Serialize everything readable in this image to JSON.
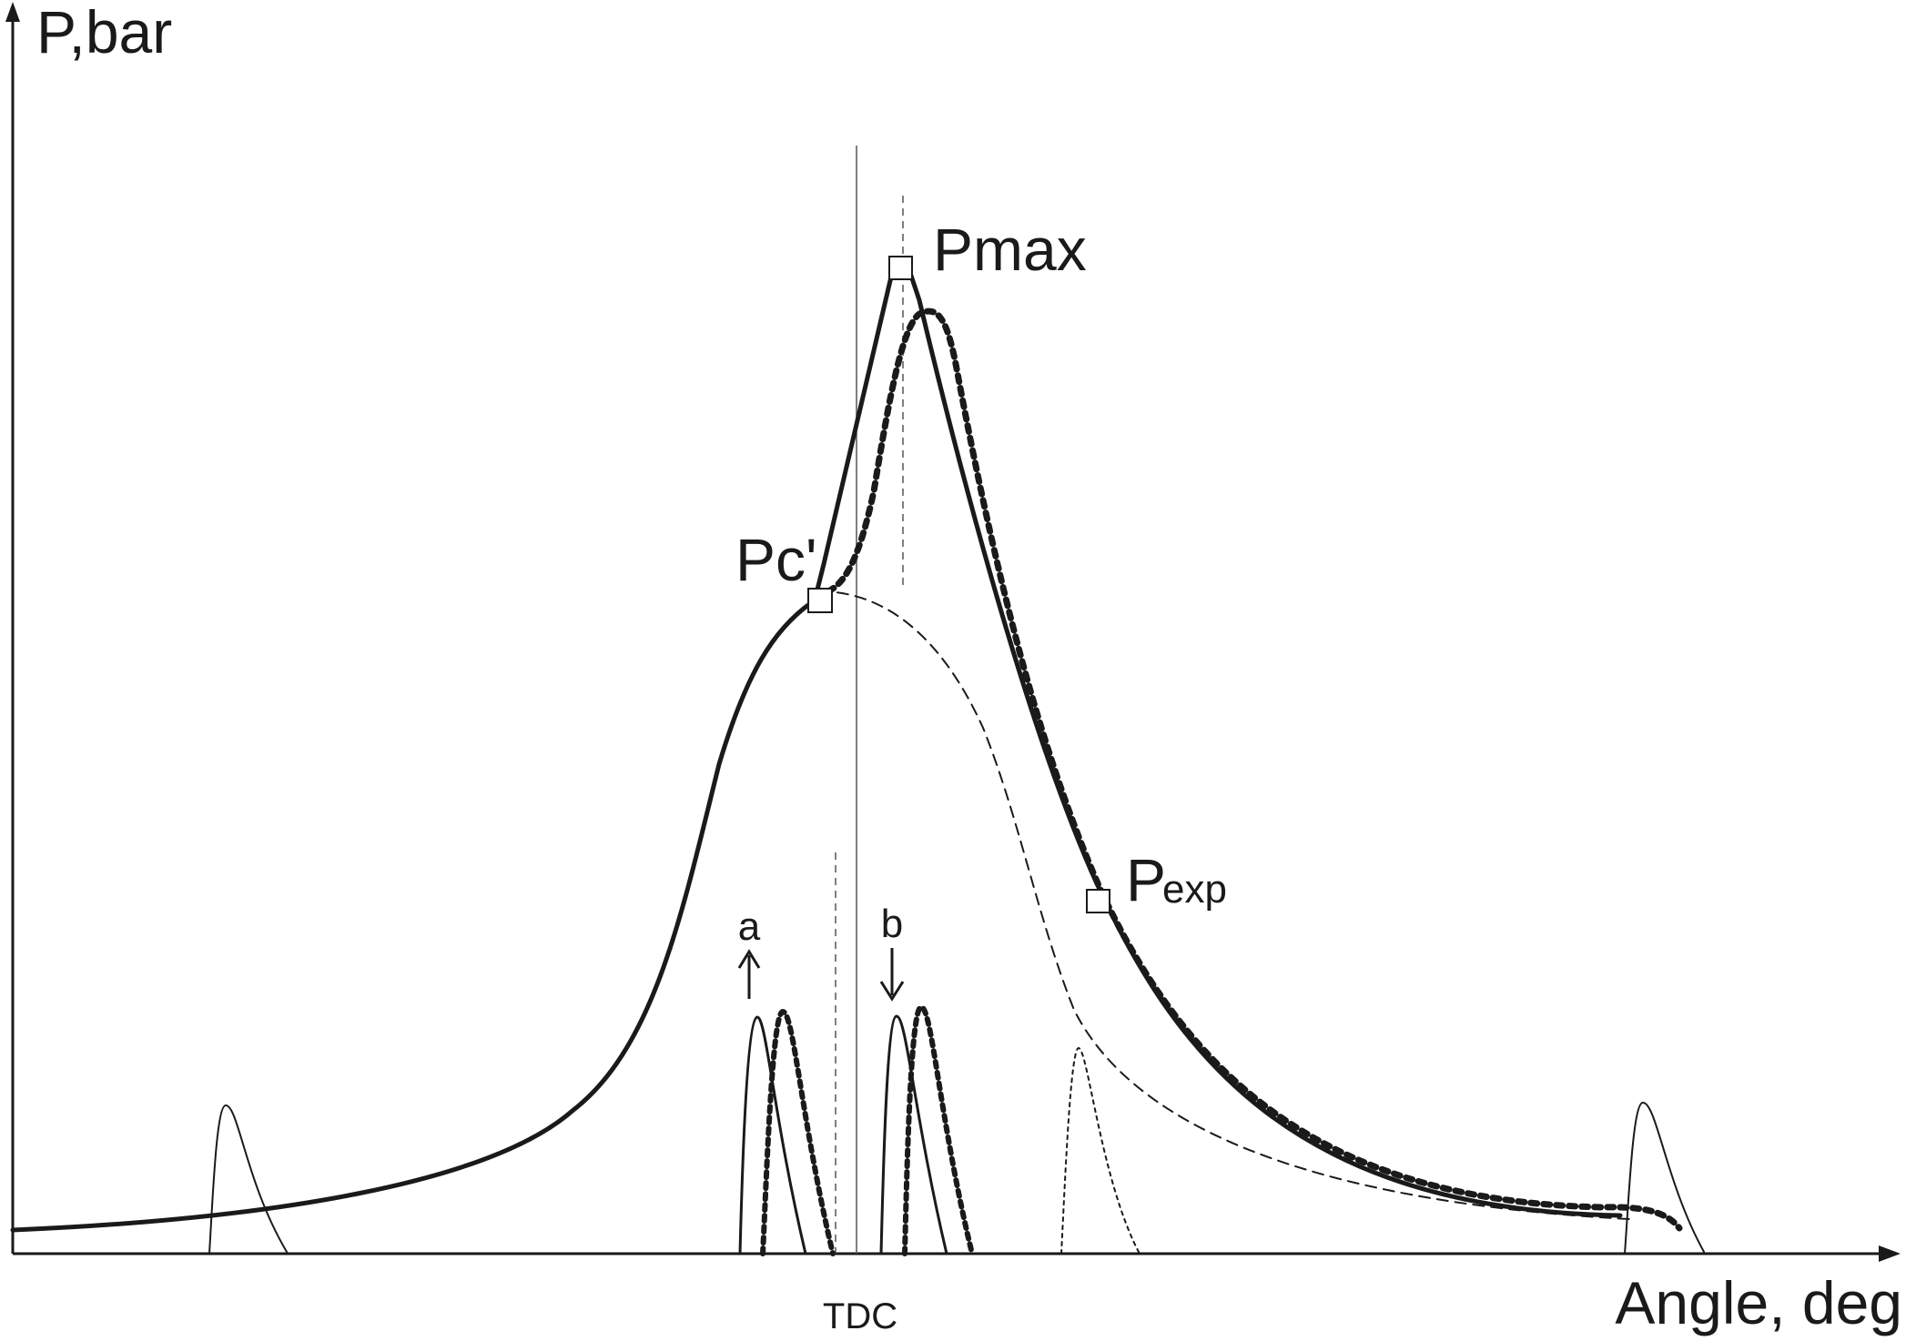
{
  "axes": {
    "y_label": "P,bar",
    "x_label": "Angle, deg"
  },
  "markers": {
    "tdc_label": "TDC"
  },
  "points": {
    "pmax": "Pmax",
    "pc": "Pc'",
    "pexp_main": "P",
    "pexp_sub": "exp"
  },
  "pulses": {
    "a_label": "a",
    "b_label": "b"
  },
  "colors": {
    "ink": "#1a1a1a",
    "background": "#ffffff",
    "marker_fill": "#ffffff"
  }
}
